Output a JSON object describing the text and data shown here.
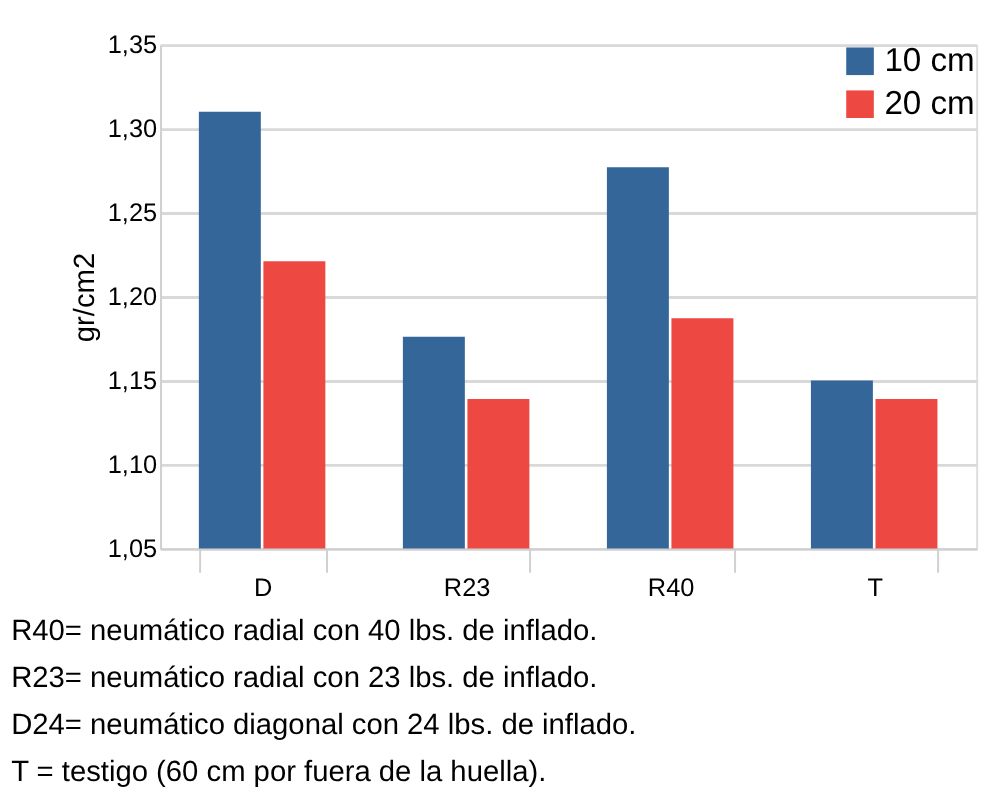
{
  "chart_data": {
    "type": "bar",
    "ylabel": "gr/cm2",
    "categories": [
      "D",
      "R23",
      "R40",
      "T"
    ],
    "series": [
      {
        "name": "10 cm",
        "color": "#346699",
        "values": [
          1.31,
          1.176,
          1.277,
          1.15
        ]
      },
      {
        "name": "20 cm",
        "color": "#ee4842",
        "values": [
          1.221,
          1.139,
          1.187,
          1.139
        ]
      }
    ],
    "ylim": [
      1.05,
      1.35
    ],
    "yticks": [
      {
        "value": 1.05,
        "label": "1,05"
      },
      {
        "value": 1.1,
        "label": "1,10"
      },
      {
        "value": 1.15,
        "label": "1,15"
      },
      {
        "value": 1.2,
        "label": "1,20"
      },
      {
        "value": 1.25,
        "label": "1,25"
      },
      {
        "value": 1.3,
        "label": "1,30"
      },
      {
        "value": 1.35,
        "label": "1,35"
      }
    ],
    "grid": "y",
    "legend": "top right",
    "annotations": [
      "R40= neumático radial con 40 lbs. de inflado.",
      "R23= neumático radial con 23 lbs. de inflado.",
      "D24= neumático diagonal con 24 lbs. de inflado.",
      "T = testigo (60 cm por fuera de la huella)."
    ]
  }
}
